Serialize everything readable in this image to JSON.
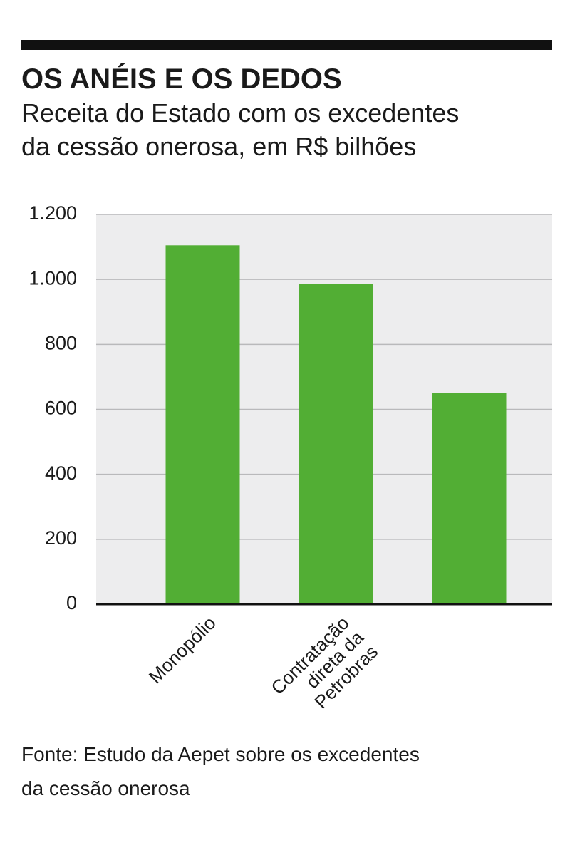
{
  "chart_data": {
    "type": "bar",
    "title": "OS ANÉIS E OS DEDOS",
    "subtitle": [
      "Receita do Estado com os excedentes",
      "da cessão onerosa, em R$ bilhões"
    ],
    "categories": [
      "Monopólio",
      "Contratação\ndireta da\nPetrobras",
      null
    ],
    "values": [
      1105,
      985,
      650
    ],
    "color": "#52ae34",
    "ylim": [
      0,
      1200
    ],
    "yticks": [
      0,
      200,
      400,
      600,
      800,
      {
        "value": 1000,
        "label": "1.000"
      },
      {
        "value": 1200,
        "label": "1.200"
      }
    ],
    "grid": true,
    "source": [
      "Fonte: Estudo da Aepet sobre os excedentes",
      "da cessão onerosa"
    ]
  }
}
